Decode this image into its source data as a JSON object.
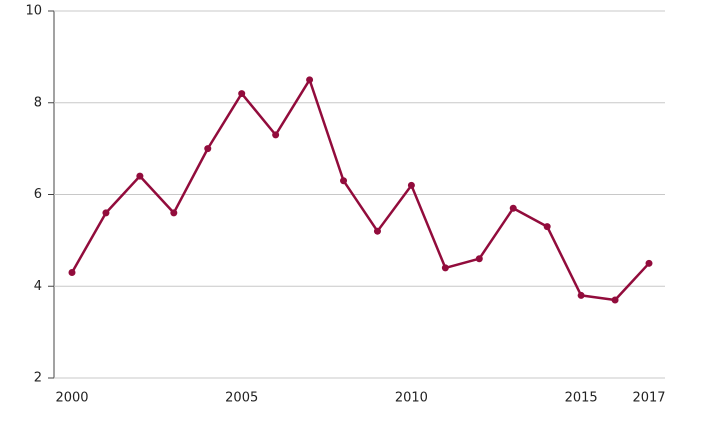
{
  "chart_data": {
    "type": "line",
    "x": [
      2000,
      2001,
      2002,
      2003,
      2004,
      2005,
      2006,
      2007,
      2008,
      2009,
      2010,
      2011,
      2012,
      2013,
      2014,
      2015,
      2016,
      2017
    ],
    "series": [
      {
        "color": "#920c3c",
        "values": [
          4.3,
          5.6,
          6.4,
          5.6,
          7.0,
          8.2,
          7.3,
          8.5,
          6.3,
          5.2,
          6.2,
          4.4,
          4.6,
          5.7,
          5.3,
          3.8,
          3.7,
          4.5
        ]
      }
    ],
    "xlim": [
      2000,
      2017
    ],
    "xticks": [
      2000,
      2005,
      2010,
      2015,
      2017
    ],
    "ylim": [
      2,
      10
    ],
    "yticks": [
      2,
      4,
      6,
      8,
      10
    ],
    "grid": true
  }
}
